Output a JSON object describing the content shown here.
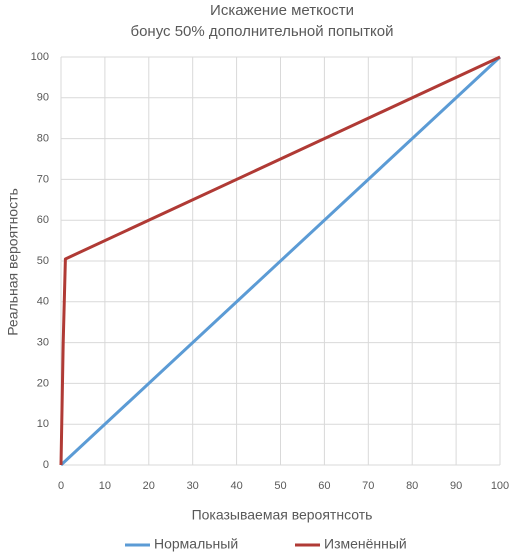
{
  "chart_data": {
    "type": "line",
    "title": "Искажение меткости",
    "subtitle": "бонус 50% дополнительной попыткой",
    "x_label": "Показываемая вероятнсоть",
    "y_label": "Реальная вероятность",
    "xlim": [
      0,
      100
    ],
    "ylim": [
      0,
      100
    ],
    "xticks": [
      0,
      10,
      20,
      30,
      40,
      50,
      60,
      70,
      80,
      90,
      100
    ],
    "yticks": [
      0,
      10,
      20,
      30,
      40,
      50,
      60,
      70,
      80,
      90,
      100
    ],
    "grid": true,
    "legend": "bottom",
    "series": [
      {
        "name": "Нормальный",
        "color": "#5b9bd5",
        "x": [
          0,
          100
        ],
        "values": [
          0,
          100
        ]
      },
      {
        "name": "Изменённый",
        "color": "#b03a35",
        "x": [
          0,
          0.5,
          1,
          100
        ],
        "values": [
          0,
          30,
          50.5,
          100
        ]
      }
    ]
  }
}
